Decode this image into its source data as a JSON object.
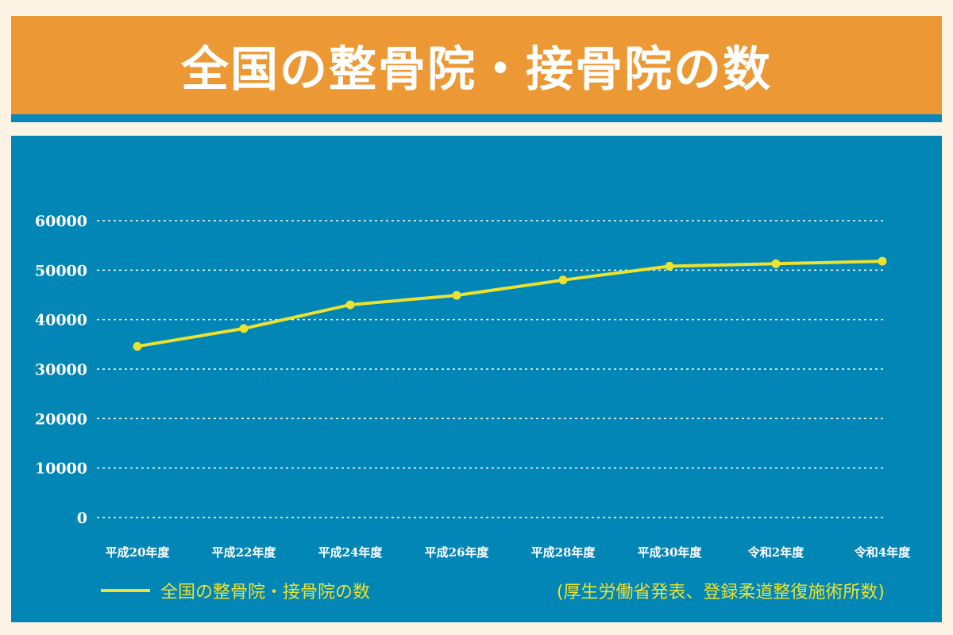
{
  "header": {
    "title": "全国の整骨院・接骨院の数"
  },
  "colors": {
    "line": "#ece230",
    "panel": "#0286b6",
    "header": "#ec9935",
    "accent": "#0a87b8"
  },
  "chart_data": {
    "type": "line",
    "title": "全国の整骨院・接骨院の数",
    "categories": [
      "平成20年度",
      "平成22年度",
      "平成24年度",
      "平成26年度",
      "平成28年度",
      "平成30年度",
      "令和2年度",
      "令和4年度"
    ],
    "series": [
      {
        "name": "全国の整骨院・接骨院の数",
        "values": [
          34600,
          38200,
          43000,
          44900,
          48000,
          50800,
          51300,
          51800
        ]
      }
    ],
    "yticks": [
      "0",
      "10000",
      "20000",
      "30000",
      "40000",
      "50000",
      "60000"
    ],
    "ylim": [
      0,
      60000
    ],
    "grid": true,
    "legend": {
      "position": "bottom",
      "note": "(厚生労働省発表、登録柔道整復施術所数)"
    }
  }
}
